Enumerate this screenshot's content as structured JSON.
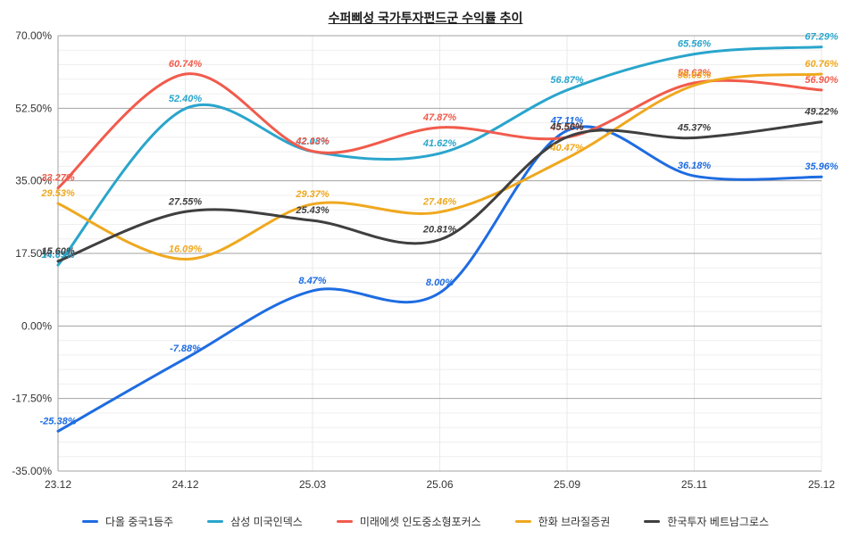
{
  "title": "수퍼삐성 국가투자펀드군 수익률 추이",
  "chart_data": {
    "type": "line",
    "title": "수퍼삐성 국가투자펀드군 수익률 추이",
    "categories": [
      "23.12",
      "24.12",
      "25.03",
      "25.06",
      "25.09",
      "25.11",
      "25.12"
    ],
    "series": [
      {
        "name": "다올 중국1등주",
        "color": "#1e6ce2",
        "values": [
          -25.38,
          -7.88,
          8.47,
          8.0,
          47.11,
          36.18,
          35.96
        ]
      },
      {
        "name": "삼성 미국인덱스",
        "color": "#29a5cc",
        "values": [
          14.69,
          52.4,
          42.08,
          41.62,
          56.87,
          65.56,
          67.29
        ]
      },
      {
        "name": "미래에셋 인도중소형포커스",
        "color": "#f15b4c",
        "values": [
          33.27,
          60.74,
          42.13,
          47.87,
          45.5,
          58.62,
          56.9
        ]
      },
      {
        "name": "한화 브라질증권",
        "color": "#efa81e",
        "values": [
          29.53,
          16.09,
          29.37,
          27.46,
          40.47,
          58.03,
          60.76
        ]
      },
      {
        "name": "한국투자 베트남그로스",
        "color": "#3f3f3f",
        "values": [
          15.6,
          27.55,
          25.43,
          20.81,
          45.56,
          45.37,
          49.22
        ]
      }
    ],
    "xlabel": "",
    "ylabel": "",
    "ylim": [
      -35,
      70
    ],
    "ytick_step": 17.5,
    "ytick_minor_step": 3.5,
    "yticks": [
      "70.00%",
      "52.50%",
      "35.00%",
      "17.50%",
      "0.00%",
      "-17.50%",
      "-35.00%"
    ],
    "grid": true,
    "legend_position": "bottom",
    "label_format": "0.00%"
  },
  "colors": {
    "axis_text": "#333333",
    "grid_major": "#a3a3a3",
    "grid_minor": "#efefef",
    "grid_vertical": "#e9e9e9",
    "background": "#ffffff"
  }
}
